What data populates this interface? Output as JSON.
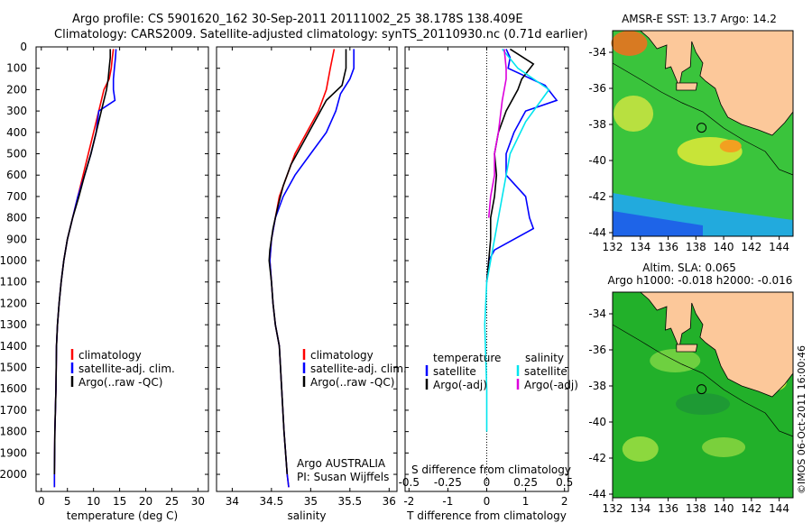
{
  "header": {
    "line1": "Argo profile: CS 5901620_162 30-Sep-2011 20111002_25 38.178S 138.409E",
    "line2": "Climatology: CARS2009. Satellite-adjusted climatology: synTS_20110930.nc (0.71d earlier)"
  },
  "depth_ticks": [
    0,
    100,
    200,
    300,
    400,
    500,
    600,
    700,
    800,
    900,
    1000,
    1100,
    1200,
    1300,
    1400,
    1500,
    1600,
    1700,
    1800,
    1900,
    2000
  ],
  "colors": {
    "climatology": "#ff0000",
    "satellite": "#0000ff",
    "argo": "#000000",
    "sat_salinity": "#00e5ee",
    "argo_salinity": "#dd00dd"
  },
  "chart_data": [
    {
      "type": "line",
      "id": "temperature",
      "xlabel": "temperature (deg C)",
      "xlim": [
        -1,
        32
      ],
      "ylim": [
        2080,
        0
      ],
      "xticks": [
        0,
        5,
        10,
        15,
        20,
        25,
        30
      ],
      "legend": {
        "placement": "lower-left",
        "entries": [
          "climatology",
          "satellite-adj. clim.",
          "Argo(..raw -QC)"
        ]
      },
      "series": [
        {
          "name": "climatology",
          "color": "#ff0000",
          "points": [
            [
              13.8,
              10
            ],
            [
              13.6,
              50
            ],
            [
              13.4,
              100
            ],
            [
              13.0,
              150
            ],
            [
              12.0,
              200
            ],
            [
              11.0,
              300
            ],
            [
              10.0,
              400
            ],
            [
              9.0,
              500
            ],
            [
              8.0,
              600
            ],
            [
              7.0,
              700
            ],
            [
              6.0,
              800
            ],
            [
              5.0,
              900
            ],
            [
              4.3,
              1000
            ],
            [
              3.8,
              1100
            ],
            [
              3.4,
              1200
            ],
            [
              3.1,
              1300
            ],
            [
              2.9,
              1400
            ],
            [
              2.8,
              1600
            ],
            [
              2.6,
              1800
            ],
            [
              2.5,
              2000
            ],
            [
              2.5,
              2060
            ]
          ]
        },
        {
          "name": "satellite-adj. clim.",
          "color": "#0000ff",
          "points": [
            [
              14.3,
              10
            ],
            [
              14.2,
              50
            ],
            [
              14.0,
              100
            ],
            [
              13.8,
              150
            ],
            [
              13.8,
              200
            ],
            [
              14.1,
              250
            ],
            [
              11.0,
              300
            ],
            [
              10.5,
              400
            ],
            [
              9.5,
              500
            ],
            [
              8.3,
              600
            ],
            [
              7.0,
              700
            ],
            [
              6.0,
              800
            ],
            [
              5.0,
              900
            ],
            [
              4.3,
              1000
            ],
            [
              3.8,
              1100
            ],
            [
              3.4,
              1200
            ],
            [
              3.1,
              1300
            ],
            [
              2.9,
              1400
            ],
            [
              2.8,
              1600
            ],
            [
              2.6,
              1800
            ],
            [
              2.5,
              2000
            ],
            [
              2.5,
              2060
            ]
          ]
        },
        {
          "name": "Argo(..raw -QC)",
          "color": "#000000",
          "points": [
            [
              13.2,
              10
            ],
            [
              13.2,
              50
            ],
            [
              13.0,
              100
            ],
            [
              12.8,
              150
            ],
            [
              12.5,
              200
            ],
            [
              11.5,
              300
            ],
            [
              10.5,
              400
            ],
            [
              9.5,
              500
            ],
            [
              8.3,
              600
            ],
            [
              7.2,
              700
            ],
            [
              6.0,
              800
            ],
            [
              5.0,
              900
            ],
            [
              4.3,
              1000
            ],
            [
              3.8,
              1100
            ],
            [
              3.4,
              1200
            ],
            [
              3.1,
              1300
            ],
            [
              2.9,
              1400
            ],
            [
              2.8,
              1600
            ],
            [
              2.6,
              1800
            ],
            [
              2.5,
              2000
            ]
          ]
        }
      ]
    },
    {
      "type": "line",
      "id": "salinity",
      "xlabel": "salinity",
      "xlim": [
        33.8,
        36.1
      ],
      "ylim": [
        2080,
        0
      ],
      "xticks": [
        34,
        34.5,
        35,
        35.5,
        36
      ],
      "legend": {
        "placement": "lower-right",
        "entries": [
          "climatology",
          "satellite-adj. clim.",
          "Argo(..raw -QC)"
        ]
      },
      "annotation": [
        "Argo AUSTRALIA",
        "PI: Susan Wijffels"
      ],
      "series": [
        {
          "name": "climatology",
          "color": "#ff0000",
          "points": [
            [
              35.3,
              10
            ],
            [
              35.25,
              100
            ],
            [
              35.2,
              200
            ],
            [
              35.1,
              300
            ],
            [
              34.95,
              400
            ],
            [
              34.8,
              500
            ],
            [
              34.7,
              600
            ],
            [
              34.6,
              700
            ],
            [
              34.55,
              800
            ],
            [
              34.5,
              900
            ],
            [
              34.48,
              1000
            ],
            [
              34.5,
              1100
            ],
            [
              34.52,
              1200
            ],
            [
              34.55,
              1300
            ],
            [
              34.6,
              1400
            ],
            [
              34.63,
              1600
            ],
            [
              34.66,
              1800
            ],
            [
              34.7,
              2000
            ],
            [
              34.72,
              2060
            ]
          ]
        },
        {
          "name": "satellite-adj. clim.",
          "color": "#0000ff",
          "points": [
            [
              35.55,
              10
            ],
            [
              35.55,
              100
            ],
            [
              35.5,
              150
            ],
            [
              35.38,
              220
            ],
            [
              35.32,
              300
            ],
            [
              35.2,
              400
            ],
            [
              35.0,
              500
            ],
            [
              34.8,
              600
            ],
            [
              34.65,
              700
            ],
            [
              34.55,
              800
            ],
            [
              34.5,
              900
            ],
            [
              34.48,
              1000
            ],
            [
              34.5,
              1100
            ],
            [
              34.52,
              1200
            ],
            [
              34.55,
              1300
            ],
            [
              34.6,
              1400
            ],
            [
              34.63,
              1600
            ],
            [
              34.66,
              1800
            ],
            [
              34.7,
              2000
            ],
            [
              34.72,
              2060
            ]
          ]
        },
        {
          "name": "Argo(..raw -QC)",
          "color": "#000000",
          "points": [
            [
              35.45,
              10
            ],
            [
              35.45,
              100
            ],
            [
              35.4,
              180
            ],
            [
              35.2,
              250
            ],
            [
              35.05,
              350
            ],
            [
              34.9,
              450
            ],
            [
              34.75,
              550
            ],
            [
              34.65,
              650
            ],
            [
              34.58,
              750
            ],
            [
              34.52,
              850
            ],
            [
              34.48,
              950
            ],
            [
              34.47,
              1000
            ],
            [
              34.5,
              1100
            ],
            [
              34.52,
              1200
            ],
            [
              34.55,
              1300
            ],
            [
              34.6,
              1400
            ],
            [
              34.63,
              1600
            ],
            [
              34.66,
              1800
            ],
            [
              34.7,
              2000
            ]
          ]
        }
      ]
    },
    {
      "type": "line",
      "id": "difference",
      "xlabel": "T difference from climatology",
      "xlabel_top": "S difference from climatology",
      "xlim": [
        -2.1,
        2.1
      ],
      "ylim": [
        2080,
        0
      ],
      "xticks": [
        -2,
        -1,
        0,
        1,
        2
      ],
      "xticks_s": [
        -0.5,
        -0.25,
        0,
        0.25,
        0.5
      ],
      "legend": {
        "placement": "lower-center",
        "group1_title": "temperature",
        "group2_title": "salinity",
        "entries": [
          "satellite",
          "Argo(-adj)",
          "satellite",
          "Argo(-adj)"
        ]
      },
      "series": [
        {
          "name": "satellite",
          "group": "temperature",
          "color": "#0000ff",
          "points": [
            [
              0.5,
              10
            ],
            [
              0.6,
              50
            ],
            [
              0.55,
              100
            ],
            [
              1.5,
              180
            ],
            [
              1.8,
              250
            ],
            [
              1.0,
              300
            ],
            [
              0.7,
              400
            ],
            [
              0.5,
              500
            ],
            [
              0.5,
              600
            ],
            [
              1.0,
              700
            ],
            [
              1.1,
              800
            ],
            [
              1.2,
              850
            ],
            [
              0.2,
              950
            ],
            [
              0.05,
              1000
            ],
            [
              0,
              1100
            ]
          ]
        },
        {
          "name": "Argo(-adj)",
          "group": "temperature",
          "color": "#000000",
          "points": [
            [
              0.6,
              10
            ],
            [
              1.2,
              80
            ],
            [
              0.9,
              150
            ],
            [
              0.8,
              200
            ],
            [
              0.5,
              300
            ],
            [
              0.3,
              400
            ],
            [
              0.2,
              500
            ],
            [
              0.25,
              600
            ],
            [
              0.2,
              700
            ],
            [
              0.1,
              800
            ],
            [
              0.1,
              900
            ],
            [
              0.05,
              1000
            ],
            [
              0,
              1100
            ]
          ]
        },
        {
          "name": "satellite",
          "group": "salinity",
          "color": "#00e5ee",
          "points": [
            [
              0.4,
              10
            ],
            [
              0.8,
              100
            ],
            [
              1.6,
              200
            ],
            [
              1.0,
              350
            ],
            [
              0.6,
              500
            ],
            [
              0.4,
              700
            ],
            [
              0.2,
              900
            ],
            [
              0.0,
              1100
            ],
            [
              -0.05,
              1300
            ],
            [
              0,
              1600
            ],
            [
              0,
              1800
            ]
          ]
        },
        {
          "name": "Argo(-adj)",
          "group": "salinity",
          "color": "#dd00dd",
          "points": [
            [
              0.45,
              10
            ],
            [
              0.5,
              100
            ],
            [
              0.5,
              150
            ],
            [
              0.4,
              250
            ],
            [
              0.3,
              400
            ],
            [
              0.2,
              500
            ],
            [
              0.2,
              600
            ],
            [
              0.1,
              700
            ],
            [
              0.05,
              800
            ]
          ]
        }
      ]
    }
  ],
  "maps": {
    "sst": {
      "title": "AMSR-E SST: 13.7 Argo: 14.2",
      "xticks": [
        132,
        134,
        136,
        138,
        140,
        142,
        144
      ],
      "yticks": [
        -34,
        -36,
        -38,
        -40,
        -42,
        -44
      ],
      "lon": [
        132,
        145
      ],
      "lat": [
        -44.2,
        -32.8
      ],
      "marker": [
        138.41,
        -38.18
      ]
    },
    "sla": {
      "title_line1": "Altim. SLA: 0.065",
      "title_line2": "Argo h1000: -0.018 h2000: -0.016",
      "xticks": [
        132,
        134,
        136,
        138,
        140,
        142,
        144
      ],
      "yticks": [
        -34,
        -36,
        -38,
        -40,
        -42,
        -44
      ],
      "lon": [
        132,
        145
      ],
      "lat": [
        -44.2,
        -32.8
      ],
      "marker": [
        138.41,
        -38.18
      ]
    }
  },
  "credit": "©IMOS 06-Oct-2011 16:00:46"
}
